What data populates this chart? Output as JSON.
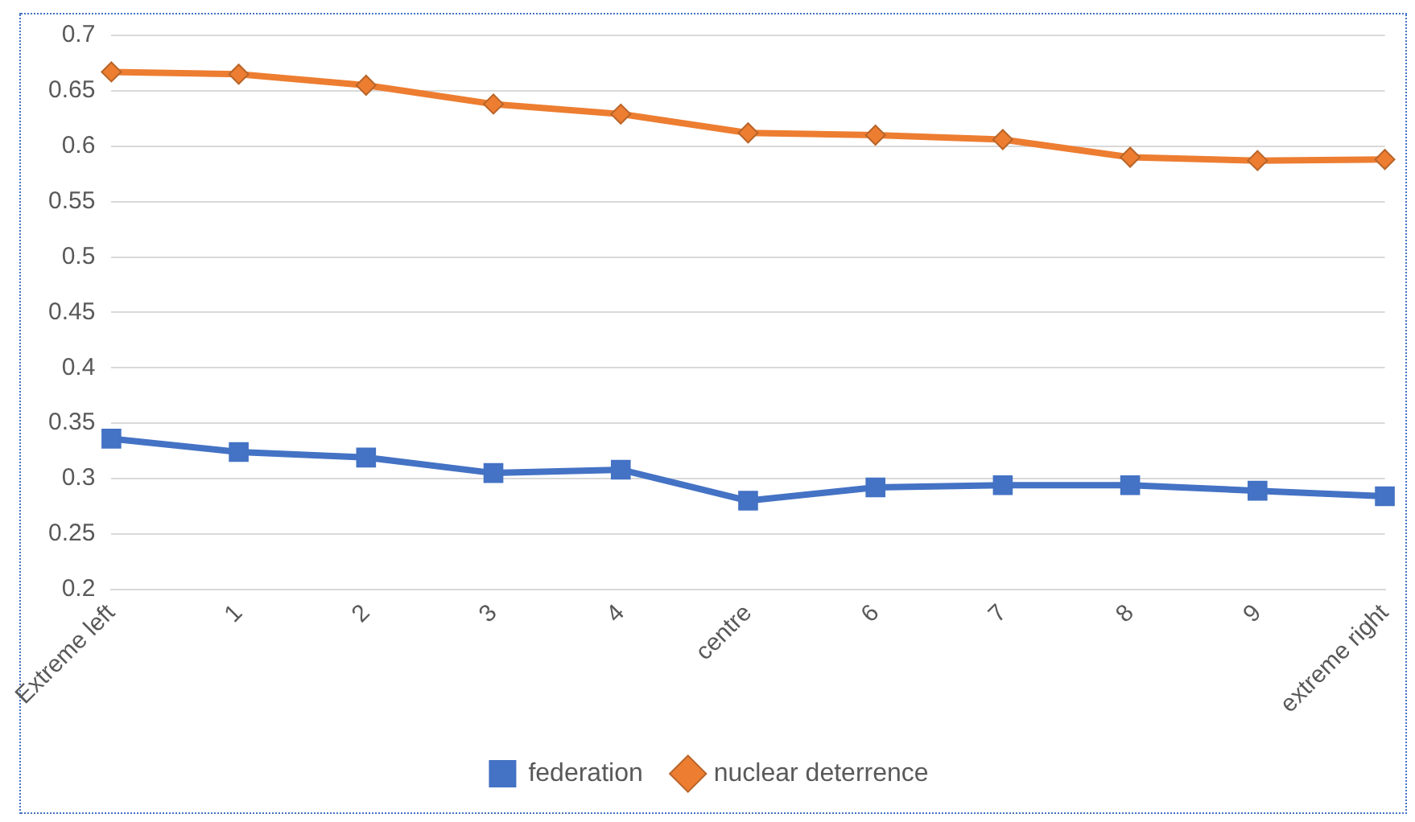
{
  "chart_data": {
    "type": "line",
    "categories": [
      "Extreme left",
      "1",
      "2",
      "3",
      "4",
      "centre",
      "6",
      "7",
      "8",
      "9",
      "extreme right"
    ],
    "series": [
      {
        "name": "federation",
        "color": "#4472c4",
        "marker": "square",
        "values": [
          0.336,
          0.324,
          0.319,
          0.305,
          0.308,
          0.28,
          0.292,
          0.294,
          0.294,
          0.289,
          0.284
        ]
      },
      {
        "name": "nuclear deterrence",
        "color": "#ed7d31",
        "marker": "diamond",
        "values": [
          0.667,
          0.665,
          0.655,
          0.638,
          0.629,
          0.612,
          0.61,
          0.606,
          0.59,
          0.587,
          0.588
        ]
      }
    ],
    "ylim": [
      0.2,
      0.7
    ],
    "yticks": [
      0.2,
      0.25,
      0.3,
      0.35,
      0.4,
      0.45,
      0.5,
      0.55,
      0.6,
      0.65,
      0.7
    ],
    "grid": "y",
    "legend": "bottom"
  }
}
